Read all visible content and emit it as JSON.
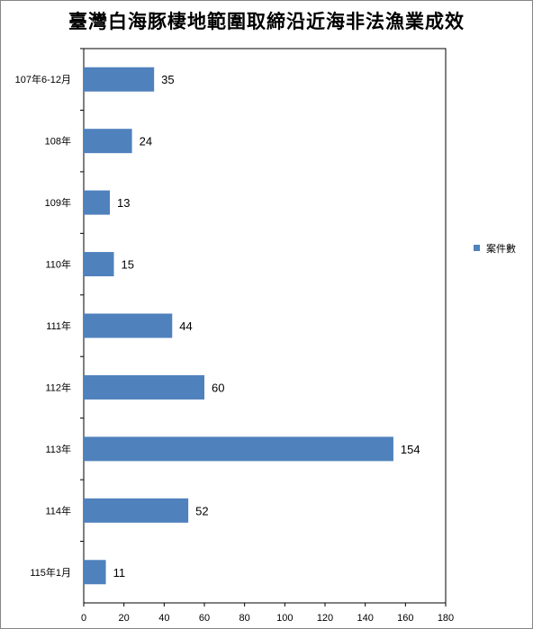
{
  "chart_data": {
    "type": "bar",
    "orientation": "horizontal",
    "title": "臺灣白海豚棲地範圍取締沿近海非法漁業成效",
    "categories": [
      "107年6-12月",
      "108年",
      "109年",
      "110年",
      "111年",
      "112年",
      "113年",
      "114年",
      "115年1月"
    ],
    "series": [
      {
        "name": "案件數",
        "values": [
          35,
          24,
          13,
          15,
          44,
          60,
          154,
          52,
          11
        ],
        "color": "#4F81BD"
      }
    ],
    "xlim": [
      0,
      180
    ],
    "xticks": [
      0,
      20,
      40,
      60,
      80,
      100,
      120,
      140,
      160,
      180
    ],
    "grid": false,
    "legend_position": "right",
    "data_labels": true
  }
}
